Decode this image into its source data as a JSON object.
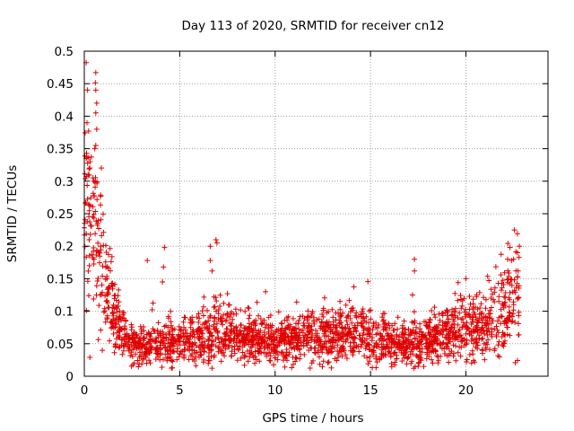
{
  "chart_data": {
    "type": "scatter",
    "title": "Day 113 of 2020, SRMTID for receiver cn12",
    "xlabel": "GPS time / hours",
    "ylabel": "SRMTID / TECUs",
    "xlim": [
      0,
      24.3
    ],
    "ylim": [
      0,
      0.5
    ],
    "grid": true,
    "marker": "+",
    "color": "#e00000",
    "x_ticks": [
      0,
      5,
      10,
      15,
      20
    ],
    "x_tick_labels": [
      "0",
      "5",
      "10",
      "15",
      "20"
    ],
    "y_ticks": [
      0,
      0.05,
      0.1,
      0.15,
      0.2,
      0.25,
      0.3,
      0.35,
      0.4,
      0.45,
      0.5
    ],
    "y_tick_labels": [
      "0",
      "0.05",
      "0.1",
      "0.15",
      "0.2",
      "0.25",
      "0.3",
      "0.35",
      "0.4",
      "0.45",
      "0.5"
    ],
    "series": [
      {
        "name": "SRMTID",
        "profile": {
          "description": "approximate running median of the dense scatter (hours, TECU)",
          "x": [
            0,
            0.3,
            0.6,
            0.9,
            1.2,
            1.6,
            2.0,
            2.5,
            3.0,
            4.0,
            5.0,
            6.0,
            7.0,
            8.0,
            10.0,
            12.0,
            14.0,
            15.0,
            16.0,
            17.0,
            18.0,
            19.0,
            20.0,
            21.0,
            22.0,
            22.8
          ],
          "y": [
            0.27,
            0.25,
            0.22,
            0.17,
            0.13,
            0.09,
            0.065,
            0.05,
            0.045,
            0.05,
            0.055,
            0.06,
            0.07,
            0.06,
            0.055,
            0.06,
            0.065,
            0.06,
            0.05,
            0.05,
            0.055,
            0.065,
            0.075,
            0.08,
            0.1,
            0.13
          ]
        },
        "outliers": [
          {
            "x": 0.6,
            "y": 0.467
          },
          {
            "x": 0.6,
            "y": 0.44
          },
          {
            "x": 0.65,
            "y": 0.42
          },
          {
            "x": 0.6,
            "y": 0.405
          },
          {
            "x": 0.65,
            "y": 0.38
          },
          {
            "x": 0.6,
            "y": 0.355
          },
          {
            "x": 0.55,
            "y": 0.35
          },
          {
            "x": 0.1,
            "y": 0.335
          },
          {
            "x": 0.3,
            "y": 0.33
          },
          {
            "x": 0.5,
            "y": 0.3
          },
          {
            "x": 0.2,
            "y": 0.31
          },
          {
            "x": 3.3,
            "y": 0.178
          },
          {
            "x": 4.2,
            "y": 0.198
          },
          {
            "x": 4.15,
            "y": 0.168
          },
          {
            "x": 4.1,
            "y": 0.145
          },
          {
            "x": 6.6,
            "y": 0.2
          },
          {
            "x": 6.9,
            "y": 0.21
          },
          {
            "x": 6.95,
            "y": 0.205
          },
          {
            "x": 6.6,
            "y": 0.178
          },
          {
            "x": 6.7,
            "y": 0.162
          },
          {
            "x": 9.5,
            "y": 0.13
          },
          {
            "x": 17.3,
            "y": 0.18
          },
          {
            "x": 17.3,
            "y": 0.162
          },
          {
            "x": 17.2,
            "y": 0.125
          },
          {
            "x": 22.8,
            "y": 0.2
          },
          {
            "x": 22.7,
            "y": 0.19
          },
          {
            "x": 22.5,
            "y": 0.18
          },
          {
            "x": 20.0,
            "y": 0.15
          }
        ]
      }
    ]
  }
}
